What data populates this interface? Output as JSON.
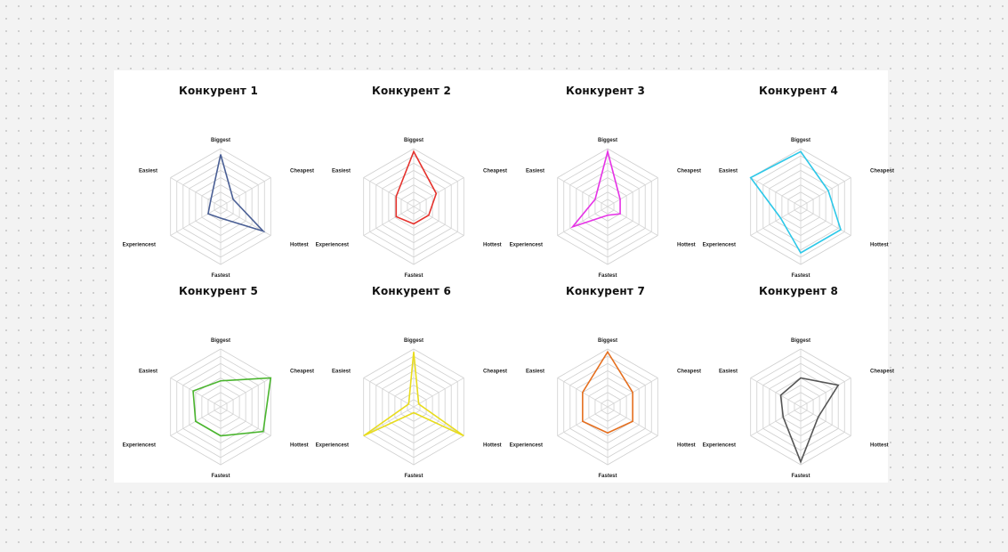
{
  "chart_data": [
    {
      "type": "radar",
      "title": "Конкурент 1",
      "axes": [
        "Biggest",
        "Cheapest",
        "Hottest",
        "Fastest",
        "Experiencest",
        "Easiest"
      ],
      "values": [
        0.9,
        0.25,
        0.85,
        0.2,
        0.25,
        0.2
      ],
      "color": "#4a5f95",
      "rmax": 1,
      "rings": 8
    },
    {
      "type": "radar",
      "title": "Конкурент 2",
      "axes": [
        "Biggest",
        "Cheapest",
        "Hottest",
        "Fastest",
        "Experiencest",
        "Easiest"
      ],
      "values": [
        0.95,
        0.45,
        0.3,
        0.3,
        0.35,
        0.35
      ],
      "color": "#e5322d",
      "rmax": 1,
      "rings": 8
    },
    {
      "type": "radar",
      "title": "Конкурент 3",
      "axes": [
        "Biggest",
        "Cheapest",
        "Hottest",
        "Fastest",
        "Experiencest",
        "Easiest"
      ],
      "values": [
        0.95,
        0.25,
        0.25,
        0.15,
        0.7,
        0.25
      ],
      "color": "#e633e6",
      "rmax": 1,
      "rings": 8
    },
    {
      "type": "radar",
      "title": "Конкурент 4",
      "axes": [
        "Biggest",
        "Cheapest",
        "Hottest",
        "Fastest",
        "Experiencest",
        "Easiest"
      ],
      "values": [
        0.95,
        0.55,
        0.8,
        0.8,
        0.4,
        1.0
      ],
      "color": "#2ec8e8",
      "rmax": 1,
      "rings": 8
    },
    {
      "type": "radar",
      "title": "Конкурент 5",
      "axes": [
        "Biggest",
        "Cheapest",
        "Hottest",
        "Fastest",
        "Experiencest",
        "Easiest"
      ],
      "values": [
        0.45,
        1.0,
        0.85,
        0.5,
        0.5,
        0.55
      ],
      "color": "#4ab52e",
      "rmax": 1,
      "rings": 8
    },
    {
      "type": "radar",
      "title": "Конкурент 6",
      "axes": [
        "Biggest",
        "Cheapest",
        "Hottest",
        "Fastest",
        "Experiencest",
        "Easiest"
      ],
      "values": [
        0.95,
        0.1,
        1.0,
        0.1,
        1.0,
        0.1
      ],
      "color": "#e8dc1e",
      "rmax": 1,
      "rings": 8
    },
    {
      "type": "radar",
      "title": "Конкурент 7",
      "axes": [
        "Biggest",
        "Cheapest",
        "Hottest",
        "Fastest",
        "Experiencest",
        "Easiest"
      ],
      "values": [
        0.95,
        0.5,
        0.5,
        0.45,
        0.5,
        0.5
      ],
      "color": "#e56f1f",
      "rmax": 1,
      "rings": 8
    },
    {
      "type": "radar",
      "title": "Конкурент 8",
      "axes": [
        "Biggest",
        "Cheapest",
        "Hottest",
        "Fastest",
        "Experiencest",
        "Easiest"
      ],
      "values": [
        0.5,
        0.75,
        0.35,
        0.95,
        0.35,
        0.4
      ],
      "color": "#555555",
      "rmax": 1,
      "rings": 8
    }
  ]
}
